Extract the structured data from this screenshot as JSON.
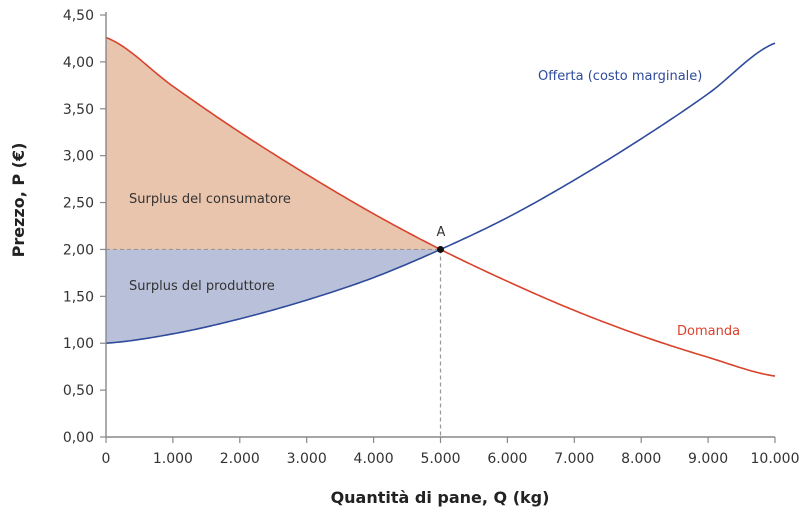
{
  "chart_data": {
    "type": "line",
    "xlabel": "Quantità di pane, Q (kg)",
    "ylabel": "Prezzo, P (€)",
    "xlim": [
      0,
      10000
    ],
    "ylim": [
      0,
      4.5
    ],
    "x_ticks": [
      0,
      1000,
      2000,
      3000,
      4000,
      5000,
      6000,
      7000,
      8000,
      9000,
      10000
    ],
    "x_tick_labels": [
      "0",
      "1.000",
      "2.000",
      "3.000",
      "4.000",
      "5.000",
      "6.000",
      "7.000",
      "8.000",
      "9.000",
      "10.000"
    ],
    "y_ticks": [
      0,
      0.5,
      1,
      1.5,
      2,
      2.5,
      3,
      3.5,
      4,
      4.5
    ],
    "y_tick_labels": [
      "0,00",
      "0,50",
      "1,00",
      "1,50",
      "2,00",
      "2,50",
      "3,00",
      "3,50",
      "4,00",
      "4,50"
    ],
    "grid": false,
    "x": [
      0,
      1000,
      2000,
      3000,
      4000,
      5000,
      6000,
      7000,
      8000,
      9000,
      10000
    ],
    "series": [
      {
        "name": "Domanda",
        "color": "#d8432c",
        "values": [
          4.26,
          3.74,
          3.25,
          2.8,
          2.38,
          2.0,
          1.66,
          1.35,
          1.08,
          0.85,
          0.65
        ]
      },
      {
        "name": "Offerta (costo marginale)",
        "color": "#2f4b9b",
        "values": [
          1.0,
          1.1,
          1.26,
          1.46,
          1.7,
          2.0,
          2.34,
          2.74,
          3.18,
          3.66,
          4.2
        ]
      }
    ],
    "equilibrium": {
      "label": "A",
      "x": 5000,
      "y": 2.0
    },
    "areas": [
      {
        "label": "Surplus del consumatore",
        "color": "#eac5ae"
      },
      {
        "label": "Surplus del produttore",
        "color": "#b9c1da"
      }
    ]
  }
}
